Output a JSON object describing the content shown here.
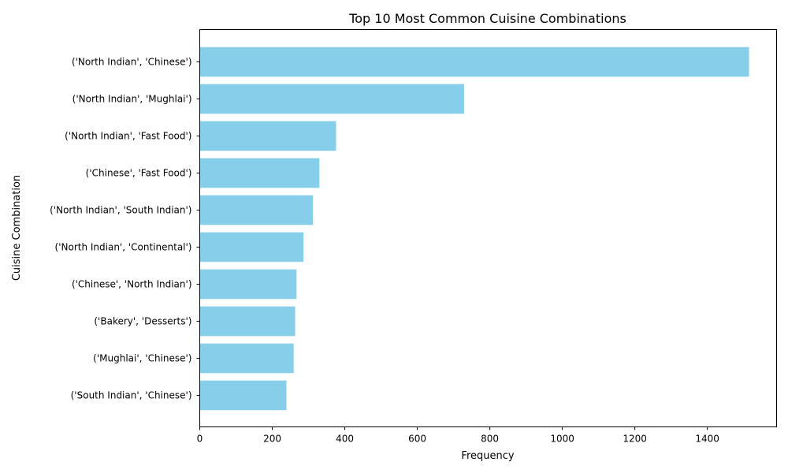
{
  "chart_data": {
    "type": "bar",
    "orientation": "horizontal",
    "title": "Top 10 Most Common Cuisine Combinations",
    "xlabel": "Frequency",
    "ylabel": "Cuisine Combination",
    "categories": [
      "('North Indian', 'Chinese')",
      "('North Indian', 'Mughlai')",
      "('North Indian', 'Fast Food')",
      "('Chinese', 'Fast Food')",
      "('North Indian', 'South Indian')",
      "('North Indian', 'Continental')",
      "('Chinese', 'North Indian')",
      "('Bakery', 'Desserts')",
      "('Mughlai', 'Chinese')",
      "('South Indian', 'Chinese')"
    ],
    "values": [
      1515,
      729,
      376,
      330,
      312,
      286,
      267,
      263,
      259,
      239
    ],
    "xlim": [
      0,
      1591
    ],
    "xticks": [
      0,
      200,
      400,
      600,
      800,
      1000,
      1200,
      1400
    ],
    "grid": false,
    "bar_color": "#87ceeb"
  }
}
